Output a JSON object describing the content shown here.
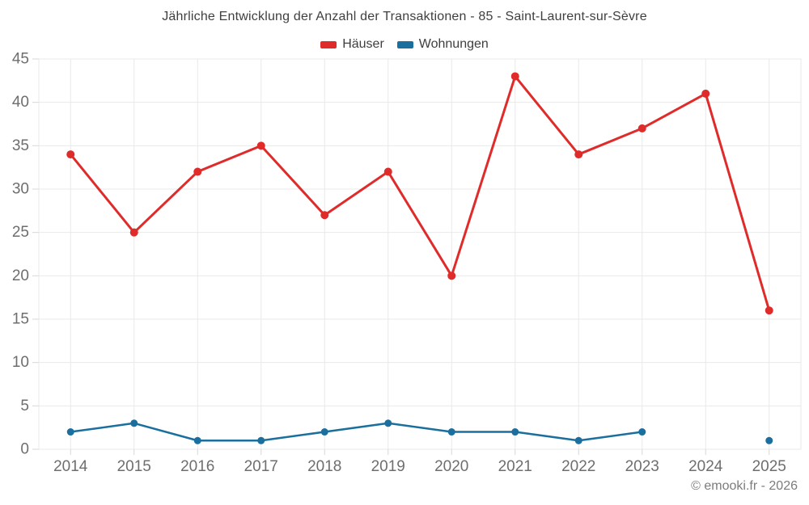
{
  "chart_data": {
    "type": "line",
    "title": "Jährliche Entwicklung der Anzahl der Transaktionen - 85 - Saint-Laurent-sur-Sèvre",
    "categories": [
      "2014",
      "2015",
      "2016",
      "2017",
      "2018",
      "2019",
      "2020",
      "2021",
      "2022",
      "2023",
      "2024",
      "2025"
    ],
    "series": [
      {
        "name": "Häuser",
        "color": "#e02b2b",
        "values": [
          34,
          25,
          32,
          35,
          27,
          32,
          20,
          43,
          34,
          37,
          41,
          16
        ]
      },
      {
        "name": "Wohnungen",
        "color": "#1a6f9e",
        "values": [
          2,
          3,
          1,
          1,
          2,
          3,
          2,
          2,
          1,
          2,
          null,
          1
        ]
      }
    ],
    "ylim": [
      0,
      45
    ],
    "ytick_step": 5,
    "yticks": [
      0,
      5,
      10,
      15,
      20,
      25,
      30,
      35,
      40,
      45
    ],
    "grid": true,
    "legend_position": "top"
  },
  "footer": {
    "credit": "© emooki.fr - 2026"
  },
  "colors": {
    "grid": "#e9e9e9",
    "tick": "#d7d7d7",
    "axis_label": "#6e6e6e",
    "title_text": "#3f3f3f",
    "footer_text": "#7c7c7c",
    "background": "#ffffff"
  }
}
